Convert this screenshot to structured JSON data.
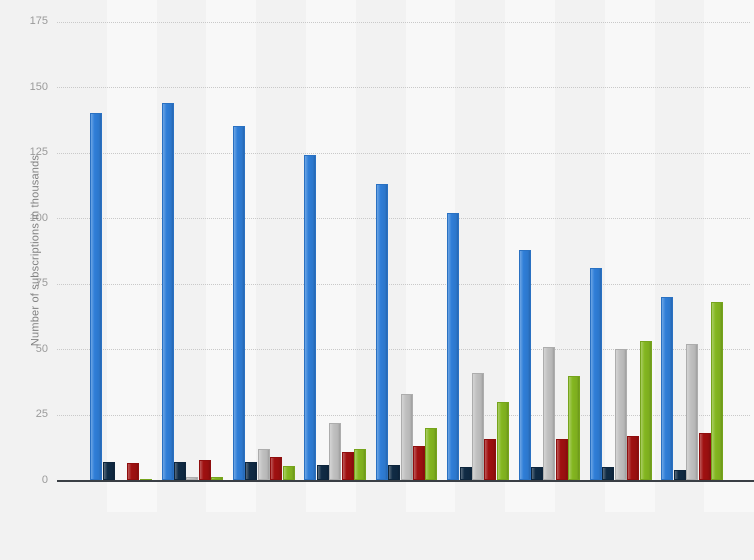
{
  "page": {
    "background_color": "#f2f2f2",
    "axis_line_color": "#3a3f45",
    "gridline_color": "#c9c9c9",
    "tick_label_color": "#9a9a9a",
    "axis_title_color": "#808080"
  },
  "chart_data": {
    "type": "bar",
    "title": "",
    "xlabel": "",
    "ylabel": "Number of subscriptions in thousands",
    "ylim": [
      0,
      175
    ],
    "yticks": [
      0,
      25,
      50,
      75,
      100,
      125,
      150,
      175
    ],
    "grid": "horizontal-dotted",
    "legend_position": "not-visible-in-crop",
    "x_tick_labels_visible": false,
    "categories": [
      "",
      "",
      "",
      "",
      "",
      "",
      "",
      "",
      ""
    ],
    "series": [
      {
        "name": "blue",
        "color": "#2f7ed8",
        "values": [
          140,
          144,
          135,
          124,
          113,
          102,
          88,
          81,
          70
        ]
      },
      {
        "name": "dark-navy",
        "color": "#102b45",
        "values": [
          7,
          7,
          7,
          6,
          6,
          5,
          5,
          5,
          4
        ]
      },
      {
        "name": "gray",
        "color": "#c1c1c1",
        "values": [
          0.3,
          1.2,
          12,
          22,
          33,
          41,
          51,
          50,
          52
        ]
      },
      {
        "name": "dark-red",
        "color": "#a01010",
        "values": [
          6.5,
          8,
          9,
          11,
          13,
          16,
          16,
          17,
          18
        ]
      },
      {
        "name": "green",
        "color": "#84b720",
        "values": [
          0.7,
          1.5,
          5.5,
          12,
          20,
          30,
          40,
          53,
          68
        ]
      }
    ]
  }
}
